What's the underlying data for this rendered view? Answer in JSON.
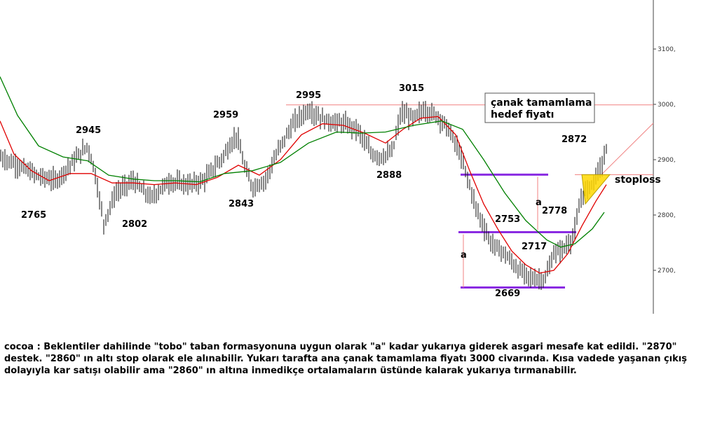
{
  "chart_data": {
    "type": "candlestick",
    "instrument": "cocoa",
    "y_axis": {
      "position": "right",
      "ticks": [
        2700,
        2800,
        2900,
        3000,
        3100
      ],
      "tick_labels": [
        "2700,",
        "2800,",
        "2900,",
        "3000,",
        "3100,"
      ],
      "range": [
        2630,
        3160
      ]
    },
    "grid": false,
    "price_path": [
      [
        0,
        2905
      ],
      [
        25,
        2890
      ],
      [
        55,
        2870
      ],
      [
        80,
        2862
      ],
      [
        110,
        2905
      ],
      [
        125,
        2925
      ],
      [
        135,
        2880
      ],
      [
        148,
        2785
      ],
      [
        165,
        2840
      ],
      [
        190,
        2862
      ],
      [
        215,
        2830
      ],
      [
        240,
        2860
      ],
      [
        270,
        2855
      ],
      [
        290,
        2862
      ],
      [
        315,
        2900
      ],
      [
        338,
        2945
      ],
      [
        348,
        2890
      ],
      [
        360,
        2850
      ],
      [
        378,
        2862
      ],
      [
        400,
        2925
      ],
      [
        420,
        2968
      ],
      [
        440,
        2990
      ],
      [
        465,
        2970
      ],
      [
        490,
        2965
      ],
      [
        510,
        2955
      ],
      [
        530,
        2910
      ],
      [
        545,
        2905
      ],
      [
        560,
        2915
      ],
      [
        572,
        2985
      ],
      [
        590,
        2975
      ],
      [
        605,
        2990
      ],
      [
        625,
        2978
      ],
      [
        640,
        2955
      ],
      [
        655,
        2915
      ],
      [
        665,
        2875
      ],
      [
        680,
        2810
      ],
      [
        700,
        2750
      ],
      [
        720,
        2730
      ],
      [
        740,
        2700
      ],
      [
        760,
        2685
      ],
      [
        778,
        2685
      ],
      [
        790,
        2730
      ],
      [
        805,
        2740
      ],
      [
        818,
        2760
      ],
      [
        830,
        2835
      ],
      [
        845,
        2858
      ],
      [
        860,
        2895
      ],
      [
        864,
        2917
      ]
    ],
    "series": [
      {
        "name": "",
        "type": "moving-average",
        "color": "#e00000",
        "values": [
          [
            0,
            2970
          ],
          [
            20,
            2910
          ],
          [
            45,
            2880
          ],
          [
            70,
            2862
          ],
          [
            100,
            2875
          ],
          [
            130,
            2875
          ],
          [
            160,
            2858
          ],
          [
            190,
            2858
          ],
          [
            220,
            2855
          ],
          [
            250,
            2858
          ],
          [
            280,
            2855
          ],
          [
            310,
            2868
          ],
          [
            340,
            2890
          ],
          [
            370,
            2872
          ],
          [
            400,
            2900
          ],
          [
            430,
            2945
          ],
          [
            460,
            2965
          ],
          [
            490,
            2962
          ],
          [
            520,
            2948
          ],
          [
            550,
            2930
          ],
          [
            575,
            2955
          ],
          [
            600,
            2975
          ],
          [
            625,
            2978
          ],
          [
            650,
            2945
          ],
          [
            670,
            2880
          ],
          [
            690,
            2820
          ],
          [
            710,
            2775
          ],
          [
            730,
            2735
          ],
          [
            750,
            2710
          ],
          [
            770,
            2695
          ],
          [
            790,
            2700
          ],
          [
            810,
            2730
          ],
          [
            830,
            2780
          ],
          [
            850,
            2825
          ],
          [
            865,
            2855
          ]
        ]
      },
      {
        "name": "",
        "type": "moving-average",
        "color": "#008000",
        "values": [
          [
            0,
            3050
          ],
          [
            25,
            2980
          ],
          [
            55,
            2925
          ],
          [
            90,
            2905
          ],
          [
            125,
            2898
          ],
          [
            155,
            2872
          ],
          [
            190,
            2865
          ],
          [
            220,
            2862
          ],
          [
            250,
            2862
          ],
          [
            285,
            2860
          ],
          [
            320,
            2875
          ],
          [
            360,
            2880
          ],
          [
            400,
            2895
          ],
          [
            440,
            2930
          ],
          [
            480,
            2950
          ],
          [
            515,
            2948
          ],
          [
            550,
            2950
          ],
          [
            590,
            2962
          ],
          [
            630,
            2970
          ],
          [
            660,
            2955
          ],
          [
            690,
            2900
          ],
          [
            720,
            2840
          ],
          [
            750,
            2790
          ],
          [
            780,
            2755
          ],
          [
            800,
            2742
          ],
          [
            820,
            2748
          ],
          [
            845,
            2775
          ],
          [
            862,
            2805
          ]
        ]
      }
    ],
    "horizontal_levels": [
      {
        "value": 2999,
        "color": "#f08080",
        "style": "thin"
      },
      {
        "value": 2873,
        "color": "#f08080",
        "style": "thin"
      },
      {
        "value": 2873,
        "color": "#8a2be2",
        "style": "thick",
        "segment": "short"
      },
      {
        "value": 2769,
        "color": "#8a2be2",
        "style": "thick",
        "segment": "long"
      },
      {
        "value": 2669,
        "color": "#8a2be2",
        "style": "thick",
        "segment": "bottom"
      }
    ],
    "pivot_labels": [
      "2765",
      "2945",
      "2802",
      "2959",
      "2843",
      "2995",
      "3015",
      "2888",
      "2753",
      "2778",
      "2717",
      "2669",
      "2872"
    ],
    "measure_label": "a",
    "annotations": {
      "target_line1": "çanak tamamlama",
      "target_line2": "hedef fiyatı",
      "stoploss": "stoploss"
    },
    "pattern": {
      "type": "triangle",
      "fill": "#ffd700"
    }
  },
  "commentary": "cocoa : Beklentiler dahilinde \"tobo\" taban formasyonuna uygun olarak \"a\" kadar yukarıya giderek asgari mesafe kat edildi. \"2870\" destek. \"2860\" ın altı stop olarak ele alınabilir. Yukarı tarafta ana çanak tamamlama fiyatı 3000 civarında. Kısa vadede yaşanan çıkış dolayıyla kar satışı olabilir ama \"2860\" ın altına inmedikçe ortalamaların üstünde kalarak yukarıya tırmanabilir."
}
